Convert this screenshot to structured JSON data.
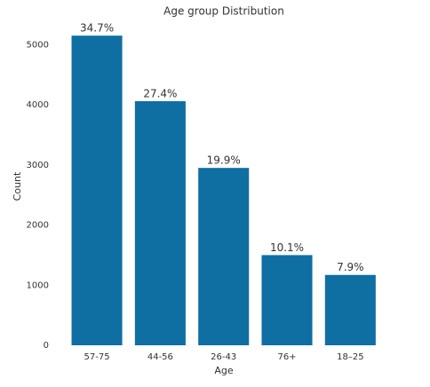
{
  "chart_data": {
    "type": "bar",
    "title": "Age group Distribution",
    "xlabel": "Age",
    "ylabel": "Count",
    "categories": [
      "57-75",
      "44-56",
      "26-43",
      "76+",
      "18–25"
    ],
    "values": [
      5150,
      4060,
      2950,
      1500,
      1170
    ],
    "share_labels": [
      "34.7%",
      "27.4%",
      "19.9%",
      "10.1%",
      "7.9%"
    ],
    "color": "#0f6fa3",
    "ylim": [
      0,
      5300
    ],
    "yticks": [
      0,
      1000,
      2000,
      3000,
      4000,
      5000
    ],
    "grid": false
  }
}
